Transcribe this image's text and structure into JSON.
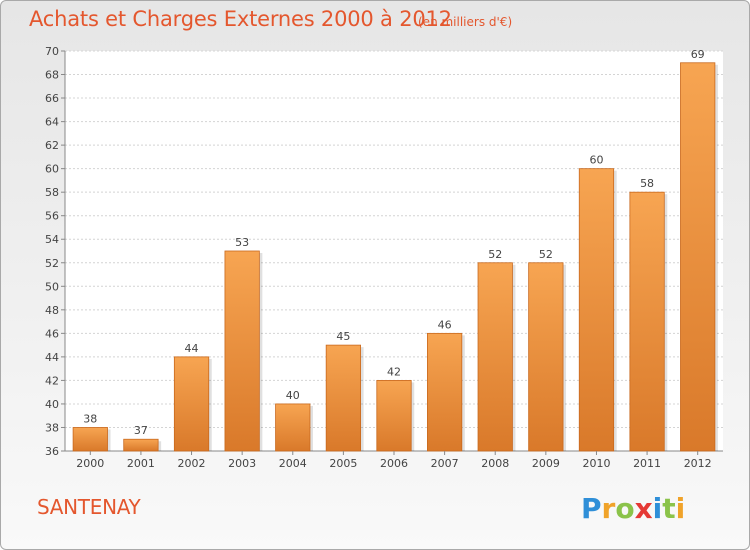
{
  "header": {
    "title": "Achats et Charges Externes 2000 à 2012",
    "subtitle": "(en milliers d'€)"
  },
  "footer": {
    "place": "SANTENAY",
    "logo_text": "Proxiti"
  },
  "colors": {
    "accent": "#e4572e",
    "bar_light": "#f7a552",
    "bar_dark": "#d9792a",
    "bar_edge": "#c9691e"
  },
  "chart_data": {
    "type": "bar",
    "categories": [
      "2000",
      "2001",
      "2002",
      "2003",
      "2004",
      "2005",
      "2006",
      "2007",
      "2008",
      "2009",
      "2010",
      "2011",
      "2012"
    ],
    "values": [
      38,
      37,
      44,
      53,
      40,
      45,
      42,
      46,
      52,
      52,
      60,
      58,
      69
    ],
    "title": "Achats et Charges Externes 2000 à 2012",
    "subtitle": "(en milliers d'€)",
    "xlabel": "",
    "ylabel": "",
    "ylim": [
      36,
      70
    ],
    "yticks": [
      36,
      38,
      40,
      42,
      44,
      46,
      48,
      50,
      52,
      54,
      56,
      58,
      60,
      62,
      64,
      66,
      68,
      70
    ],
    "grid": true,
    "data_labels": true
  }
}
